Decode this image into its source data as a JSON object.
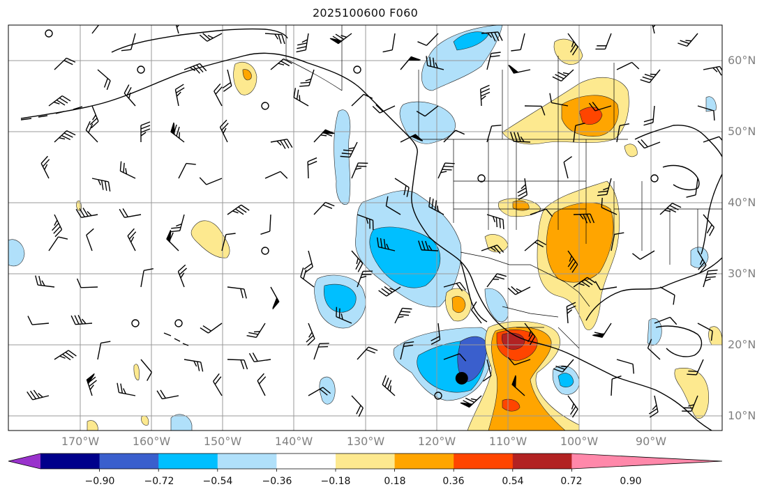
{
  "title": "2025100600 F060",
  "lat_labels": [
    "60°N",
    "50°N",
    "40°N",
    "30°N",
    "20°N",
    "10°N"
  ],
  "lon_labels": [
    "170°W",
    "160°W",
    "150°W",
    "140°W",
    "130°W",
    "120°W",
    "110°W",
    "100°W",
    "90°W"
  ],
  "colorbar": {
    "labels": [
      "−0.90",
      "−0.72",
      "−0.54",
      "−0.36",
      "−0.18",
      "0.18",
      "0.36",
      "0.54",
      "0.72",
      "0.90"
    ],
    "colors": [
      "#9932cc",
      "#00008b",
      "#3a5fcd",
      "#00bfff",
      "#b0e0fa",
      "#ffffff",
      "#fde98f",
      "#ffa500",
      "#ff4500",
      "#b22222",
      "#ff88aa"
    ]
  },
  "fill_colors": {
    "neg_018": "#b0e0fa",
    "neg_036": "#00bfff",
    "neg_054": "#3a5fcd",
    "pos_018": "#fde98f",
    "pos_036": "#ffa500",
    "pos_054": "#ff4500",
    "pos_072": "#b22222"
  },
  "marker": {
    "lon": -116.5,
    "lat": 15.3
  }
}
